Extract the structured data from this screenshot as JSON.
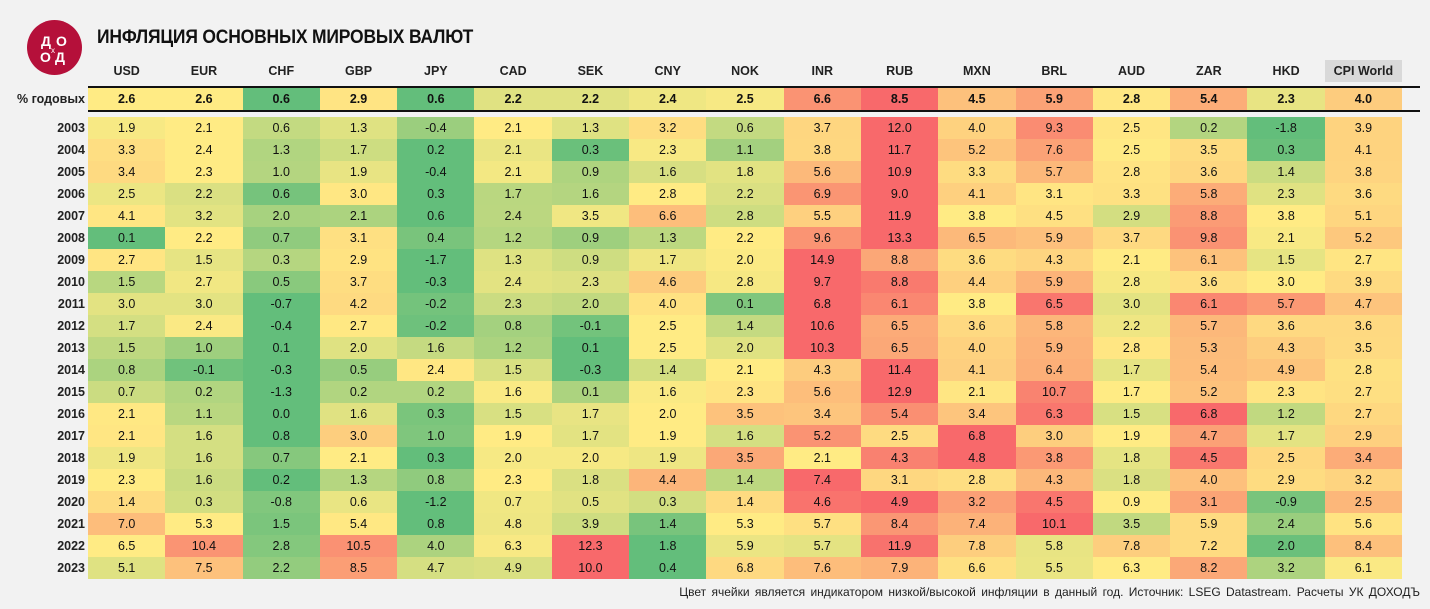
{
  "title": "ИНФЛЯЦИЯ ОСНОВНЫХ МИРОВЫХ ВАЛЮТ",
  "logo_text": "ДОХОДЪ",
  "footer": "Цвет ячейки является индикатором  низкой/высокой  инфляции  в данный год.  Источник: LSEG Datastream.  Расчеты УК ДОХОДЪ",
  "colors": {
    "low": "#63BE7B",
    "mid": "#FFEB84",
    "high": "#F8696B",
    "background": "#f2f2f2",
    "logo": "#b5103a"
  },
  "chart_data": {
    "type": "heatmap",
    "title": "ИНФЛЯЦИЯ ОСНОВНЫХ МИРОВЫХ ВАЛЮТ",
    "color_scale": "per-row: green (low) - yellow (median) - red (high)",
    "columns": [
      "USD",
      "EUR",
      "CHF",
      "GBP",
      "JPY",
      "CAD",
      "SEK",
      "CNY",
      "NOK",
      "INR",
      "RUB",
      "MXN",
      "BRL",
      "AUD",
      "ZAR",
      "HKD",
      "CPI World"
    ],
    "average_row": {
      "label": "% годовых",
      "values": [
        2.6,
        2.6,
        0.6,
        2.9,
        0.6,
        2.2,
        2.2,
        2.4,
        2.5,
        6.6,
        8.5,
        4.5,
        5.9,
        2.8,
        5.4,
        2.3,
        4.0
      ]
    },
    "rows": [
      {
        "label": "2003",
        "values": [
          1.9,
          2.1,
          0.6,
          1.3,
          -0.4,
          2.1,
          1.3,
          3.2,
          0.6,
          3.7,
          12.0,
          4.0,
          9.3,
          2.5,
          0.2,
          -1.8,
          3.9
        ]
      },
      {
        "label": "2004",
        "values": [
          3.3,
          2.4,
          1.3,
          1.7,
          0.2,
          2.1,
          0.3,
          2.3,
          1.1,
          3.8,
          11.7,
          5.2,
          7.6,
          2.5,
          3.5,
          0.3,
          4.1
        ]
      },
      {
        "label": "2005",
        "values": [
          3.4,
          2.3,
          1.0,
          1.9,
          -0.4,
          2.1,
          0.9,
          1.6,
          1.8,
          5.6,
          10.9,
          3.3,
          5.7,
          2.8,
          3.6,
          1.4,
          3.8
        ]
      },
      {
        "label": "2006",
        "values": [
          2.5,
          2.2,
          0.6,
          3.0,
          0.3,
          1.7,
          1.6,
          2.8,
          2.2,
          6.9,
          9.0,
          4.1,
          3.1,
          3.3,
          5.8,
          2.3,
          3.6
        ]
      },
      {
        "label": "2007",
        "values": [
          4.1,
          3.2,
          2.0,
          2.1,
          0.6,
          2.4,
          3.5,
          6.6,
          2.8,
          5.5,
          11.9,
          3.8,
          4.5,
          2.9,
          8.8,
          3.8,
          5.1
        ]
      },
      {
        "label": "2008",
        "values": [
          0.1,
          2.2,
          0.7,
          3.1,
          0.4,
          1.2,
          0.9,
          1.3,
          2.2,
          9.6,
          13.3,
          6.5,
          5.9,
          3.7,
          9.8,
          2.1,
          5.2
        ]
      },
      {
        "label": "2009",
        "values": [
          2.7,
          1.5,
          0.3,
          2.9,
          -1.7,
          1.3,
          0.9,
          1.7,
          2.0,
          14.9,
          8.8,
          3.6,
          4.3,
          2.1,
          6.1,
          1.5,
          2.7
        ]
      },
      {
        "label": "2010",
        "values": [
          1.5,
          2.7,
          0.5,
          3.7,
          -0.3,
          2.4,
          2.3,
          4.6,
          2.8,
          9.7,
          8.8,
          4.4,
          5.9,
          2.8,
          3.6,
          3.0,
          3.9
        ]
      },
      {
        "label": "2011",
        "values": [
          3.0,
          3.0,
          -0.7,
          4.2,
          -0.2,
          2.3,
          2.0,
          4.0,
          0.1,
          6.8,
          6.1,
          3.8,
          6.5,
          3.0,
          6.1,
          5.7,
          4.7
        ]
      },
      {
        "label": "2012",
        "values": [
          1.7,
          2.4,
          -0.4,
          2.7,
          -0.2,
          0.8,
          -0.1,
          2.5,
          1.4,
          10.6,
          6.5,
          3.6,
          5.8,
          2.2,
          5.7,
          3.6,
          3.6
        ]
      },
      {
        "label": "2013",
        "values": [
          1.5,
          1.0,
          0.1,
          2.0,
          1.6,
          1.2,
          0.1,
          2.5,
          2.0,
          10.3,
          6.5,
          4.0,
          5.9,
          2.8,
          5.3,
          4.3,
          3.5
        ]
      },
      {
        "label": "2014",
        "values": [
          0.8,
          -0.1,
          -0.3,
          0.5,
          2.4,
          1.5,
          -0.3,
          1.4,
          2.1,
          4.3,
          11.4,
          4.1,
          6.4,
          1.7,
          5.4,
          4.9,
          2.8
        ]
      },
      {
        "label": "2015",
        "values": [
          0.7,
          0.2,
          -1.3,
          0.2,
          0.2,
          1.6,
          0.1,
          1.6,
          2.3,
          5.6,
          12.9,
          2.1,
          10.7,
          1.7,
          5.2,
          2.3,
          2.7
        ]
      },
      {
        "label": "2016",
        "values": [
          2.1,
          1.1,
          0.0,
          1.6,
          0.3,
          1.5,
          1.7,
          2.0,
          3.5,
          3.4,
          5.4,
          3.4,
          6.3,
          1.5,
          6.8,
          1.2,
          2.7
        ]
      },
      {
        "label": "2017",
        "values": [
          2.1,
          1.6,
          0.8,
          3.0,
          1.0,
          1.9,
          1.7,
          1.9,
          1.6,
          5.2,
          2.5,
          6.8,
          3.0,
          1.9,
          4.7,
          1.7,
          2.9
        ]
      },
      {
        "label": "2018",
        "values": [
          1.9,
          1.6,
          0.7,
          2.1,
          0.3,
          2.0,
          2.0,
          1.9,
          3.5,
          2.1,
          4.3,
          4.8,
          3.8,
          1.8,
          4.5,
          2.5,
          3.4
        ]
      },
      {
        "label": "2019",
        "values": [
          2.3,
          1.6,
          0.2,
          1.3,
          0.8,
          2.3,
          1.8,
          4.4,
          1.4,
          7.4,
          3.1,
          2.8,
          4.3,
          1.8,
          4.0,
          2.9,
          3.2
        ]
      },
      {
        "label": "2020",
        "values": [
          1.4,
          0.3,
          -0.8,
          0.6,
          -1.2,
          0.7,
          0.5,
          0.3,
          1.4,
          4.6,
          4.9,
          3.2,
          4.5,
          0.9,
          3.1,
          -0.9,
          2.5
        ]
      },
      {
        "label": "2021",
        "values": [
          7.0,
          5.3,
          1.5,
          5.4,
          0.8,
          4.8,
          3.9,
          1.4,
          5.3,
          5.7,
          8.4,
          7.4,
          10.1,
          3.5,
          5.9,
          2.4,
          5.6
        ]
      },
      {
        "label": "2022",
        "values": [
          6.5,
          10.4,
          2.8,
          10.5,
          4.0,
          6.3,
          12.3,
          1.8,
          5.9,
          5.7,
          11.9,
          7.8,
          5.8,
          7.8,
          7.2,
          2.0,
          8.4
        ]
      },
      {
        "label": "2023",
        "values": [
          5.1,
          7.5,
          2.2,
          8.5,
          4.7,
          4.9,
          10.0,
          0.4,
          6.8,
          7.6,
          7.9,
          6.6,
          5.5,
          6.3,
          8.2,
          3.2,
          6.1
        ]
      }
    ]
  }
}
